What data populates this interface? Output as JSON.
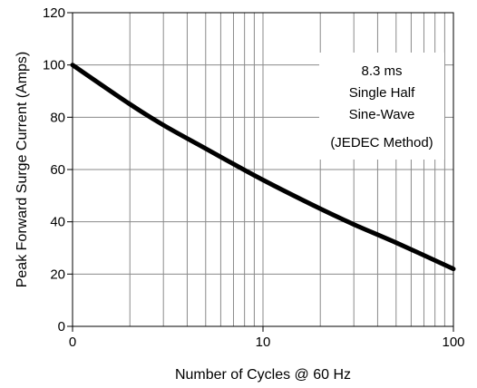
{
  "chart_data": {
    "type": "line",
    "xlabel": "Number of Cycles @ 60 Hz",
    "ylabel": "Peak Forward Surge Current (Amps)",
    "xscale": "log",
    "xlim": [
      1,
      100
    ],
    "ylim": [
      0,
      120
    ],
    "x_ticks": [
      "0",
      "10",
      "100"
    ],
    "y_ticks": [
      "0",
      "20",
      "40",
      "60",
      "80",
      "100",
      "120"
    ],
    "grid": true,
    "series": [
      {
        "x": [
          1,
          2,
          3,
          5,
          10,
          20,
          30,
          50,
          100
        ],
        "y": [
          100,
          85,
          77,
          68,
          56,
          45,
          39,
          32,
          22
        ]
      }
    ],
    "annotation": [
      "8.3 ms",
      "Single Half",
      "Sine-Wave",
      "(JEDEC Method)"
    ]
  }
}
